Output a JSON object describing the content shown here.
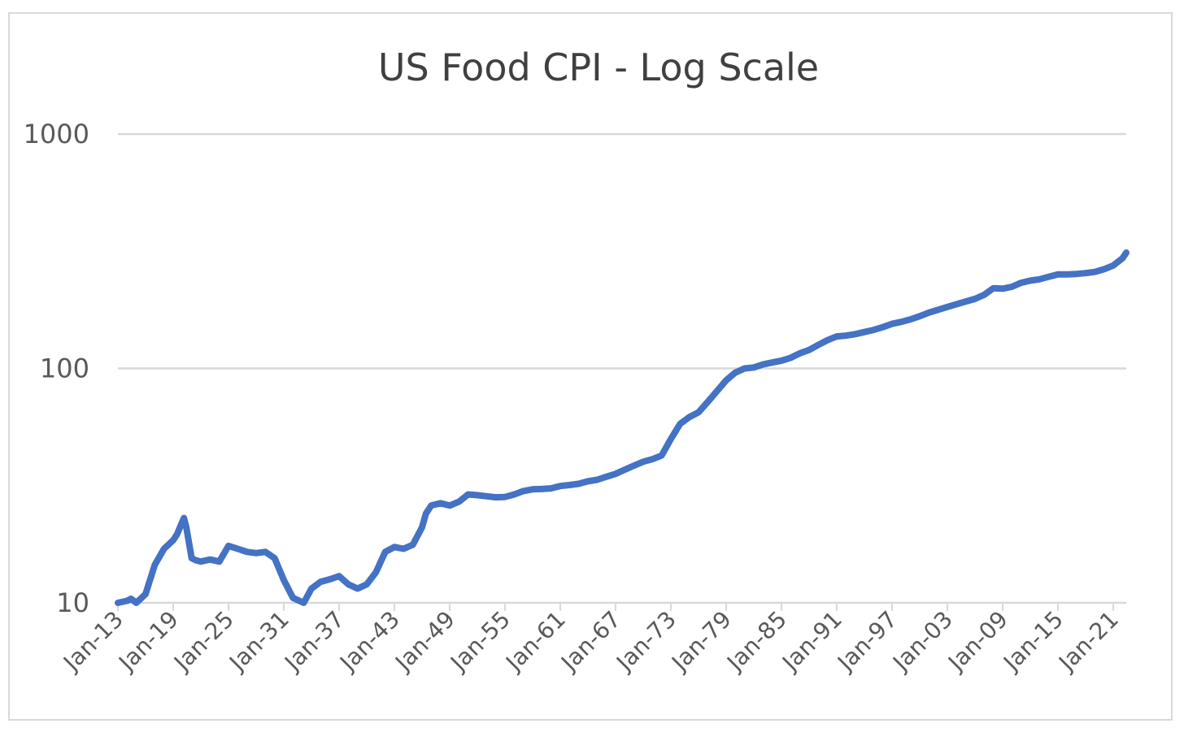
{
  "chart_data": {
    "type": "line",
    "title": "US Food CPI - Log Scale",
    "xlabel": "",
    "ylabel": "",
    "y_scale": "log",
    "ylim": [
      10,
      1000
    ],
    "y_ticks": [
      "10",
      "100",
      "1000"
    ],
    "x_ticks": [
      "Jan-13",
      "Jan-19",
      "Jan-25",
      "Jan-31",
      "Jan-37",
      "Jan-43",
      "Jan-49",
      "Jan-55",
      "Jan-61",
      "Jan-67",
      "Jan-73",
      "Jan-79",
      "Jan-85",
      "Jan-91",
      "Jan-97",
      "Jan-03",
      "Jan-09",
      "Jan-15",
      "Jan-21"
    ],
    "x_range": [
      "1913-01",
      "2022-06"
    ],
    "grid": true,
    "legend": "none",
    "series_color": "#4472c4",
    "series": [
      {
        "x": [
          "1913-01",
          "1914-01",
          "1914-06",
          "1915-01",
          "1916-01",
          "1917-01",
          "1918-01",
          "1919-01",
          "1919-06",
          "1920-03",
          "1920-06",
          "1921-01",
          "1921-06",
          "1922-01",
          "1923-01",
          "1924-01",
          "1925-01",
          "1926-01",
          "1927-01",
          "1928-01",
          "1929-01",
          "1930-01",
          "1931-01",
          "1932-01",
          "1933-03",
          "1934-01",
          "1935-01",
          "1936-01",
          "1937-01",
          "1938-01",
          "1939-01",
          "1940-01",
          "1941-01",
          "1942-01",
          "1943-01",
          "1944-01",
          "1945-01",
          "1946-01",
          "1946-06",
          "1947-01",
          "1948-01",
          "1949-01",
          "1950-01",
          "1951-01",
          "1952-01",
          "1953-01",
          "1954-01",
          "1955-01",
          "1956-01",
          "1957-01",
          "1958-01",
          "1959-01",
          "1960-01",
          "1961-01",
          "1962-01",
          "1963-01",
          "1964-01",
          "1965-01",
          "1966-01",
          "1967-01",
          "1968-01",
          "1969-01",
          "1970-01",
          "1971-01",
          "1972-01",
          "1973-01",
          "1974-01",
          "1975-01",
          "1976-01",
          "1977-01",
          "1978-01",
          "1979-01",
          "1980-01",
          "1981-01",
          "1982-01",
          "1983-01",
          "1984-01",
          "1985-01",
          "1986-01",
          "1987-01",
          "1988-01",
          "1989-01",
          "1990-01",
          "1991-01",
          "1992-01",
          "1993-01",
          "1994-01",
          "1995-01",
          "1996-01",
          "1997-01",
          "1998-01",
          "1999-01",
          "2000-01",
          "2001-01",
          "2002-01",
          "2003-01",
          "2004-01",
          "2005-01",
          "2006-01",
          "2007-01",
          "2008-01",
          "2009-01",
          "2010-01",
          "2011-01",
          "2012-01",
          "2013-01",
          "2014-01",
          "2015-01",
          "2016-01",
          "2017-01",
          "2018-01",
          "2019-01",
          "2020-01",
          "2021-01",
          "2022-01",
          "2022-06"
        ],
        "y": [
          10.0,
          10.2,
          10.4,
          10.0,
          10.9,
          14.5,
          17.0,
          18.5,
          19.6,
          23.0,
          21.0,
          15.5,
          15.2,
          15.0,
          15.3,
          15.0,
          17.5,
          17.0,
          16.5,
          16.3,
          16.5,
          15.5,
          12.5,
          10.5,
          10.0,
          11.5,
          12.3,
          12.6,
          13.0,
          12.0,
          11.5,
          12.0,
          13.5,
          16.5,
          17.3,
          17.0,
          17.7,
          21.0,
          24.0,
          26.0,
          26.6,
          26.0,
          27.0,
          29.0,
          28.8,
          28.5,
          28.2,
          28.3,
          29.0,
          30.0,
          30.5,
          30.6,
          30.8,
          31.5,
          31.8,
          32.2,
          33.0,
          33.5,
          34.5,
          35.5,
          37.0,
          38.5,
          40.0,
          41.0,
          42.5,
          50.0,
          58.0,
          62.0,
          65.0,
          72.0,
          80.0,
          89.0,
          96.0,
          100.0,
          101.0,
          104.0,
          106.0,
          108.0,
          111.0,
          116.0,
          120.0,
          126.0,
          132.0,
          137.0,
          138.0,
          140.0,
          143.0,
          146.0,
          150.0,
          155.0,
          158.0,
          162.0,
          167.0,
          173.0,
          178.0,
          183.0,
          188.0,
          193.0,
          198.0,
          206.0,
          220.0,
          219.0,
          223.0,
          232.0,
          237.0,
          240.0,
          246.0,
          252.0,
          252.0,
          253.0,
          255.0,
          258.0,
          265.0,
          275.0,
          295.0,
          312.0
        ]
      }
    ]
  }
}
